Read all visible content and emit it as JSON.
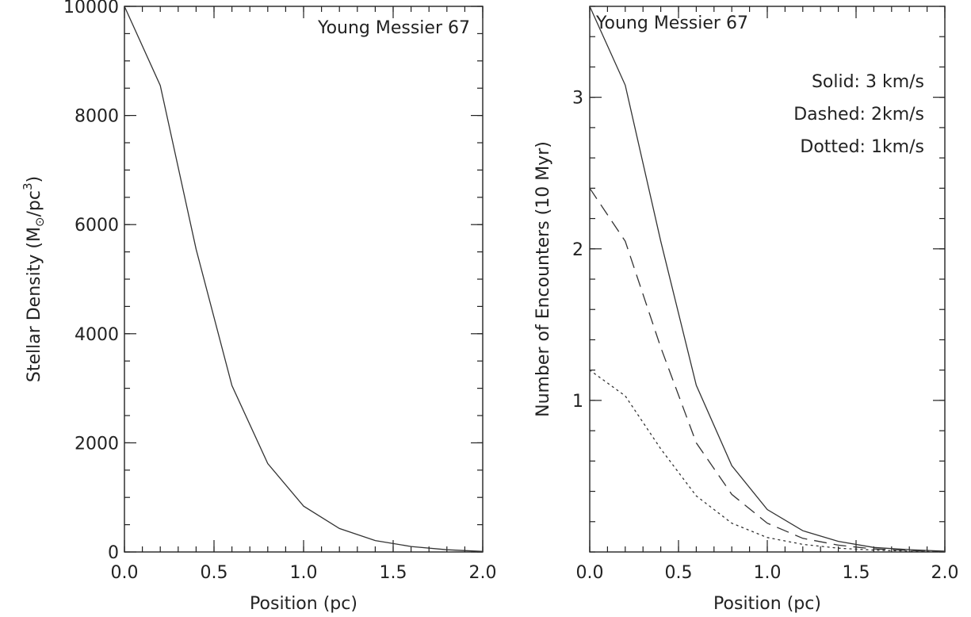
{
  "chart_data": [
    {
      "type": "line",
      "annotation": "Young Messier 67",
      "xlabel": "Position (pc)",
      "ylabel_main": "Stellar Density (M",
      "ylabel_sun": "⊙",
      "ylabel_mid": "/pc",
      "ylabel_sup": "3",
      "ylabel_end": ")",
      "xlim": [
        0,
        2.0
      ],
      "ylim": [
        0,
        10000
      ],
      "xticks": [
        0.0,
        0.5,
        1.0,
        1.5,
        2.0
      ],
      "xtick_labels": [
        "0.0",
        "0.5",
        "1.0",
        "1.5",
        "2.0"
      ],
      "yticks": [
        0,
        2000,
        4000,
        6000,
        8000,
        10000
      ],
      "ytick_labels": [
        "0",
        "2000",
        "4000",
        "6000",
        "8000",
        "10000"
      ],
      "series": [
        {
          "style": "solid",
          "x": [
            0.0,
            0.2,
            0.4,
            0.6,
            0.8,
            1.0,
            1.2,
            1.4,
            1.6,
            1.8,
            2.0
          ],
          "y": [
            10000,
            8550,
            5550,
            3050,
            1620,
            840,
            430,
            210,
            100,
            40,
            10
          ]
        }
      ]
    },
    {
      "type": "line",
      "annotation": "Young Messier 67",
      "legend_lines": [
        "Solid: 3 km/s",
        "Dashed: 2km/s",
        "Dotted: 1km/s"
      ],
      "xlabel": "Position (pc)",
      "ylabel": "Number of Encounters (10 Myr)",
      "xlim": [
        0,
        2.0
      ],
      "ylim": [
        0,
        3.6
      ],
      "xticks": [
        0.0,
        0.5,
        1.0,
        1.5,
        2.0
      ],
      "xtick_labels": [
        "0.0",
        "0.5",
        "1.0",
        "1.5",
        "2.0"
      ],
      "yticks": [
        1,
        2,
        3
      ],
      "ytick_labels": [
        "1",
        "2",
        "3"
      ],
      "series": [
        {
          "style": "solid",
          "x": [
            0.0,
            0.2,
            0.4,
            0.6,
            0.8,
            1.0,
            1.2,
            1.4,
            1.6,
            1.8,
            2.0
          ],
          "y": [
            3.6,
            3.08,
            2.05,
            1.1,
            0.57,
            0.28,
            0.14,
            0.07,
            0.03,
            0.015,
            0.005
          ]
        },
        {
          "style": "dashed",
          "x": [
            0.0,
            0.2,
            0.4,
            0.6,
            0.8,
            1.0,
            1.2,
            1.4,
            1.6,
            1.8,
            2.0
          ],
          "y": [
            2.4,
            2.05,
            1.35,
            0.72,
            0.38,
            0.19,
            0.09,
            0.045,
            0.02,
            0.01,
            0.004
          ]
        },
        {
          "style": "dotted",
          "x": [
            0.0,
            0.2,
            0.4,
            0.6,
            0.8,
            1.0,
            1.2,
            1.4,
            1.6,
            1.8,
            2.0
          ],
          "y": [
            1.2,
            1.03,
            0.68,
            0.37,
            0.19,
            0.095,
            0.05,
            0.025,
            0.012,
            0.006,
            0.002
          ]
        }
      ]
    }
  ]
}
